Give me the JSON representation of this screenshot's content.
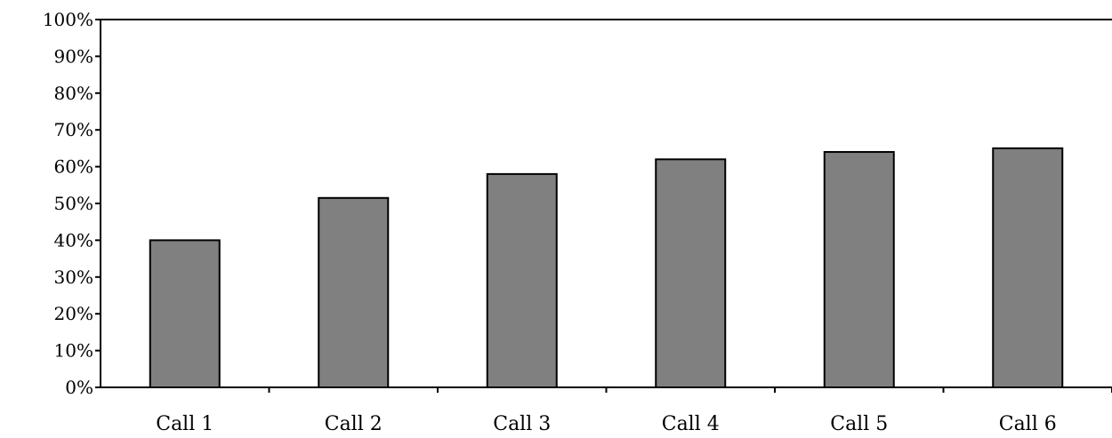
{
  "chart_data": {
    "type": "bar",
    "categories": [
      "Call 1",
      "Call 2",
      "Call 3",
      "Call 4",
      "Call 5",
      "Call 6"
    ],
    "values": [
      40,
      51.5,
      58,
      62,
      64,
      65
    ],
    "ylim": [
      0,
      100
    ],
    "y_ticks": [
      0,
      10,
      20,
      30,
      40,
      50,
      60,
      70,
      80,
      90,
      100
    ],
    "y_tick_labels": [
      "0%",
      "10%",
      "20%",
      "30%",
      "40%",
      "50%",
      "60%",
      "70%",
      "80%",
      "90%",
      "100%"
    ],
    "grid": false,
    "legend": "none",
    "colors": {
      "bar_fill": "#808080",
      "bar_stroke": "#000000",
      "axis": "#000000"
    }
  }
}
